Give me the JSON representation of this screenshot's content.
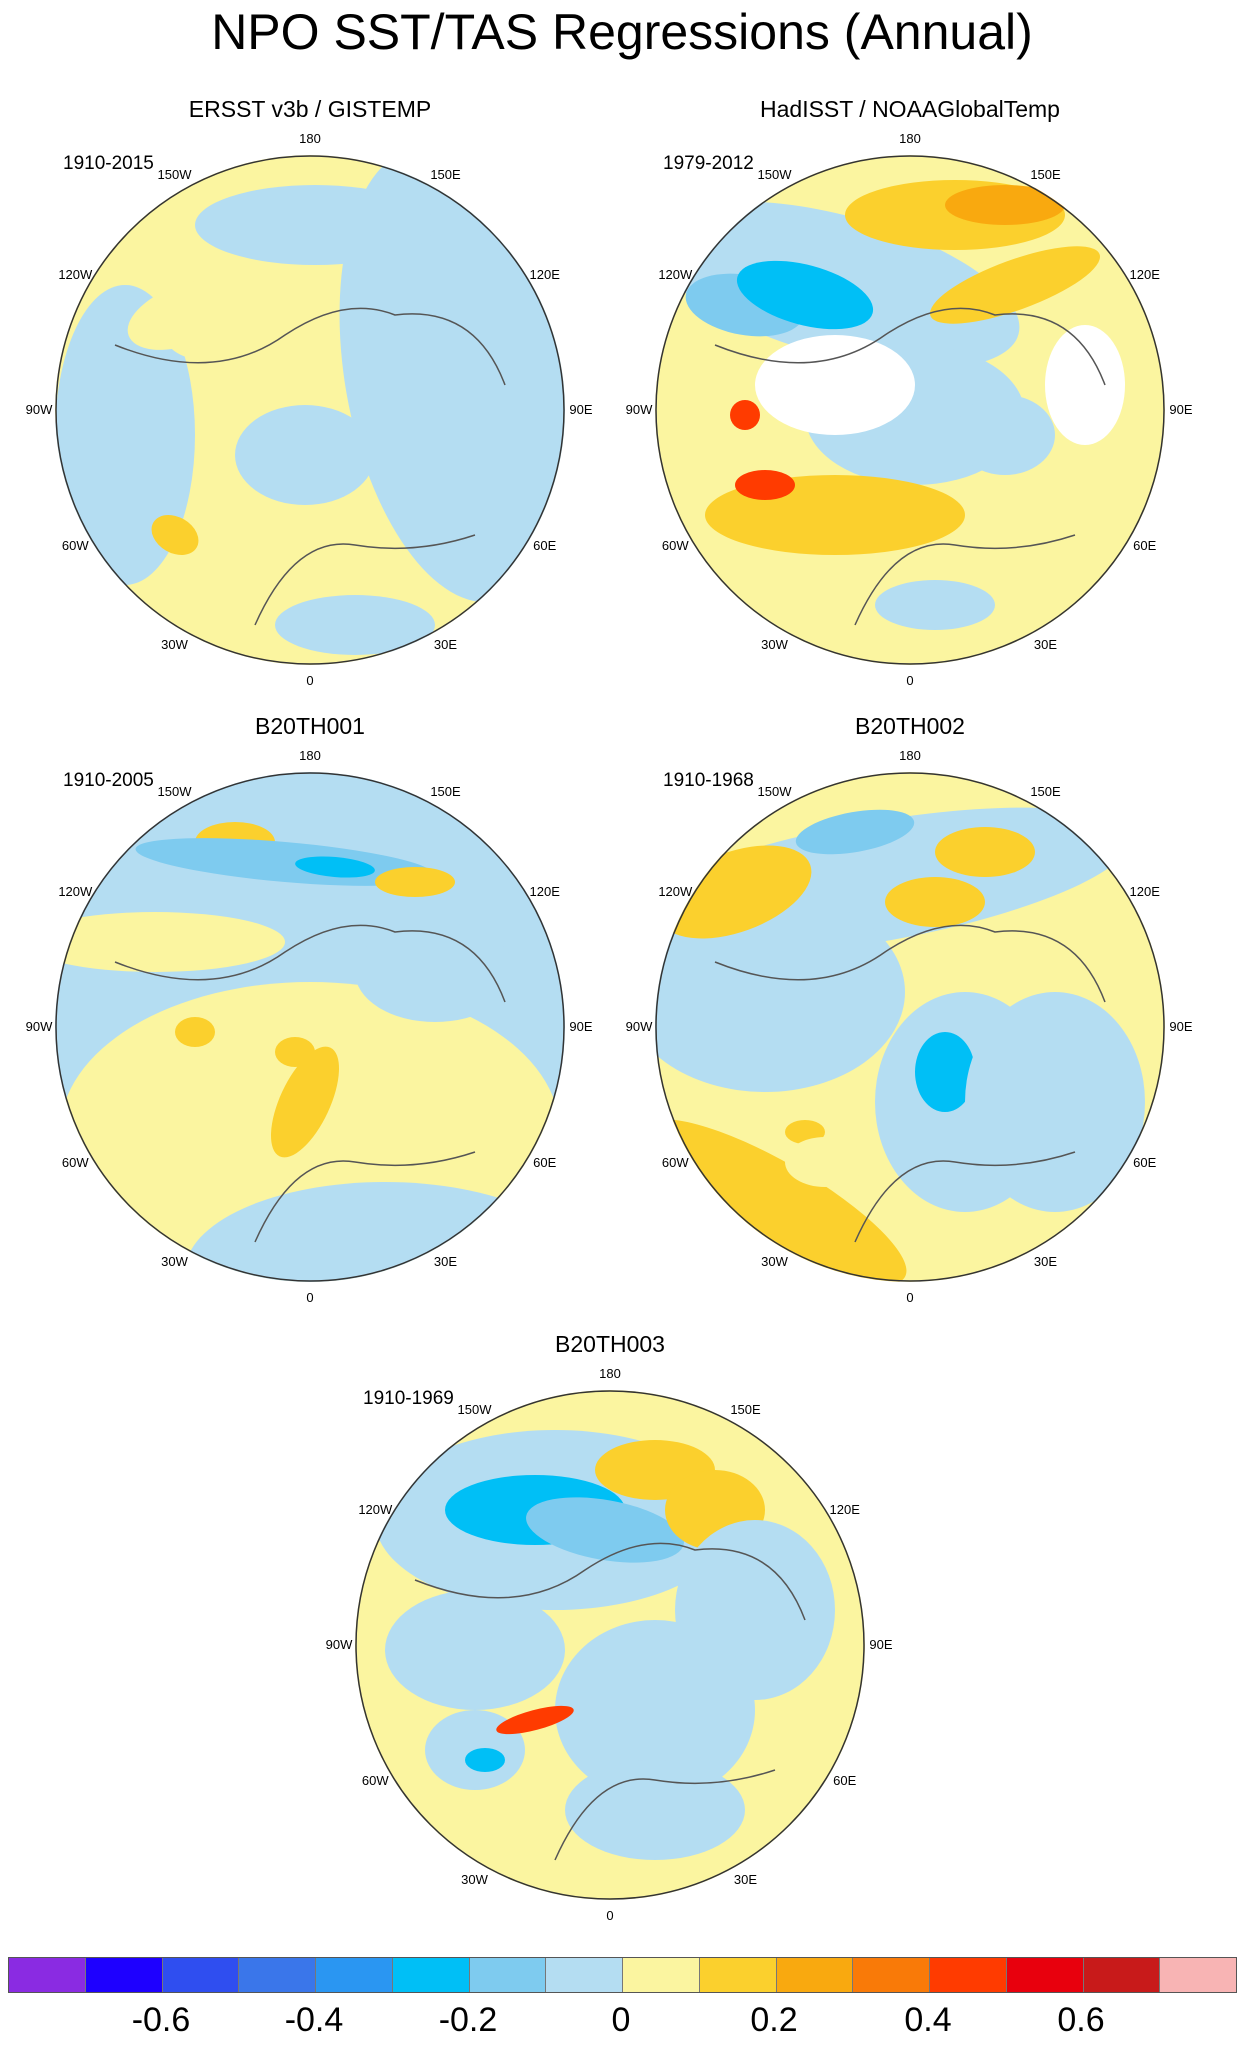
{
  "title": "NPO SST/TAS Regressions (Annual)",
  "panels": [
    {
      "title": "ERSST v3b / GISTEMP",
      "period": "1910-2015"
    },
    {
      "title": "HadISST / NOAAGlobalTemp",
      "period": "1979-2012"
    },
    {
      "title": "B20TH001",
      "period": "1910-2005"
    },
    {
      "title": "B20TH002",
      "period": "1910-1968"
    },
    {
      "title": "B20TH003",
      "period": "1910-1969"
    }
  ],
  "longitude_labels": [
    "180",
    "150E",
    "120E",
    "90E",
    "60E",
    "30E",
    "0",
    "30W",
    "60W",
    "90W",
    "120W",
    "150W"
  ],
  "colorbar": {
    "colors": [
      "#8a2be2",
      "#1e00ff",
      "#2f4ef0",
      "#3a76ea",
      "#2a96f2",
      "#00bff6",
      "#7ecbef",
      "#b4ddf2",
      "#fbf5a0",
      "#fbd02d",
      "#f9a90f",
      "#f97a08",
      "#ff3b00",
      "#e8000d",
      "#c81a1a",
      "#f8b4b4"
    ],
    "tick_labels": [
      "-0.6",
      "-0.4",
      "-0.2",
      "0",
      "0.2",
      "0.4",
      "0.6"
    ]
  }
}
